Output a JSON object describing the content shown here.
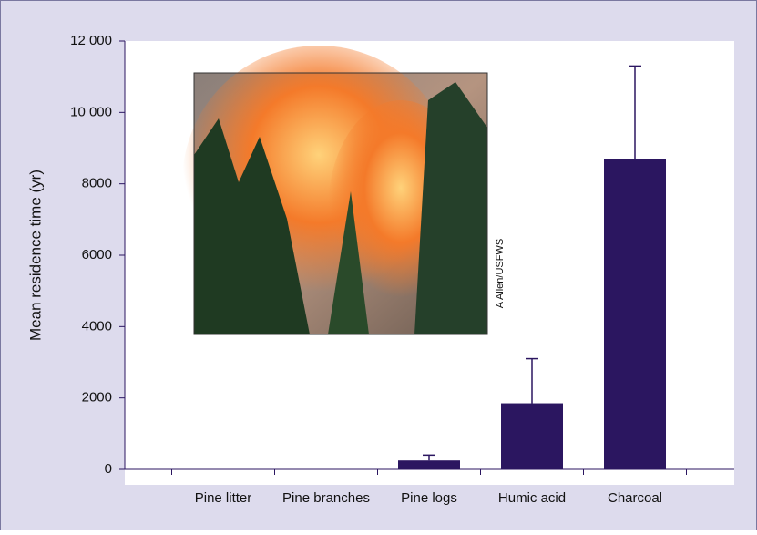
{
  "chart_data": {
    "type": "bar",
    "y_label": "Mean residence time (yr)",
    "photo_credit": "A Allen/USFWS",
    "categories": [
      "Pine litter",
      "Pine branches",
      "Pine logs",
      "Humic acid",
      "Charcoal"
    ],
    "values": [
      0,
      0,
      250,
      1850,
      8700
    ],
    "errors": [
      null,
      null,
      150,
      1250,
      2600
    ],
    "color": "#2b1660",
    "ylim": [
      0,
      12000
    ],
    "yticks": [
      0,
      2000,
      4000,
      6000,
      8000,
      {
        "value": 10000,
        "label": "10 000"
      },
      {
        "value": 12000,
        "label": "12 000"
      }
    ]
  }
}
